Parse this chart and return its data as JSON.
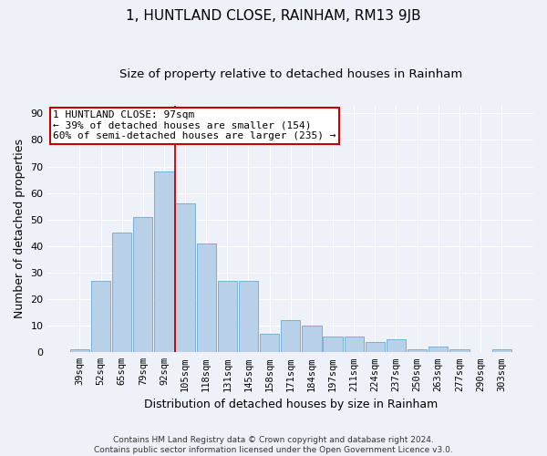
{
  "title": "1, HUNTLAND CLOSE, RAINHAM, RM13 9JB",
  "subtitle": "Size of property relative to detached houses in Rainham",
  "xlabel": "Distribution of detached houses by size in Rainham",
  "ylabel": "Number of detached properties",
  "categories": [
    "39sqm",
    "52sqm",
    "65sqm",
    "79sqm",
    "92sqm",
    "105sqm",
    "118sqm",
    "131sqm",
    "145sqm",
    "158sqm",
    "171sqm",
    "184sqm",
    "197sqm",
    "211sqm",
    "224sqm",
    "237sqm",
    "250sqm",
    "263sqm",
    "277sqm",
    "290sqm",
    "303sqm"
  ],
  "values": [
    1,
    27,
    45,
    51,
    68,
    56,
    41,
    27,
    27,
    7,
    12,
    10,
    6,
    6,
    4,
    5,
    1,
    2,
    1,
    0,
    1
  ],
  "bar_color": "#b8d0e8",
  "bar_edge_color": "#7aafd4",
  "vline_x": 4.5,
  "vline_color": "#cc0000",
  "annotation_text": "1 HUNTLAND CLOSE: 97sqm\n← 39% of detached houses are smaller (154)\n60% of semi-detached houses are larger (235) →",
  "annotation_box_color": "#ffffff",
  "annotation_border_color": "#cc0000",
  "ylim": [
    0,
    93
  ],
  "yticks": [
    0,
    10,
    20,
    30,
    40,
    50,
    60,
    70,
    80,
    90
  ],
  "footer": "Contains HM Land Registry data © Crown copyright and database right 2024.\nContains public sector information licensed under the Open Government Licence v3.0.",
  "bg_color": "#eef2f8",
  "plot_bg_color": "#eef2f8",
  "grid_color": "#ffffff",
  "title_fontsize": 11,
  "subtitle_fontsize": 9.5,
  "tick_fontsize": 7.5,
  "ylabel_fontsize": 9,
  "xlabel_fontsize": 9,
  "annotation_fontsize": 8
}
